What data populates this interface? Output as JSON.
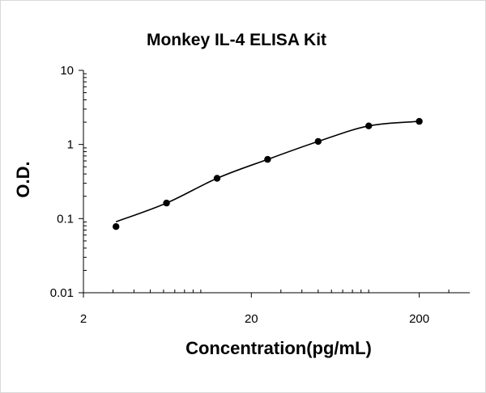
{
  "chart_data": {
    "type": "scatter",
    "title": "Monkey IL-4 ELISA Kit",
    "xlabel": "Concentration(pg/mL)",
    "ylabel": "O.D.",
    "xscale": "log",
    "yscale": "log",
    "xlim": [
      2,
      400
    ],
    "ylim": [
      0.01,
      10
    ],
    "xticks": [
      2,
      20,
      200
    ],
    "xtick_labels": [
      "2",
      "20",
      "200"
    ],
    "yticks": [
      0.01,
      0.1,
      1,
      10
    ],
    "ytick_labels": [
      "0.01",
      "0.1",
      "1",
      "10"
    ],
    "grid": false,
    "legend": "none",
    "series": [
      {
        "x": [
          3.125,
          6.25,
          12.5,
          25,
          50,
          100,
          200
        ],
        "y": [
          0.078,
          0.162,
          0.35,
          0.63,
          1.1,
          1.78,
          2.05
        ],
        "trendline": "smooth"
      }
    ],
    "colors": {
      "marker": "#000000",
      "line": "#000000",
      "axis": "#000000"
    }
  }
}
